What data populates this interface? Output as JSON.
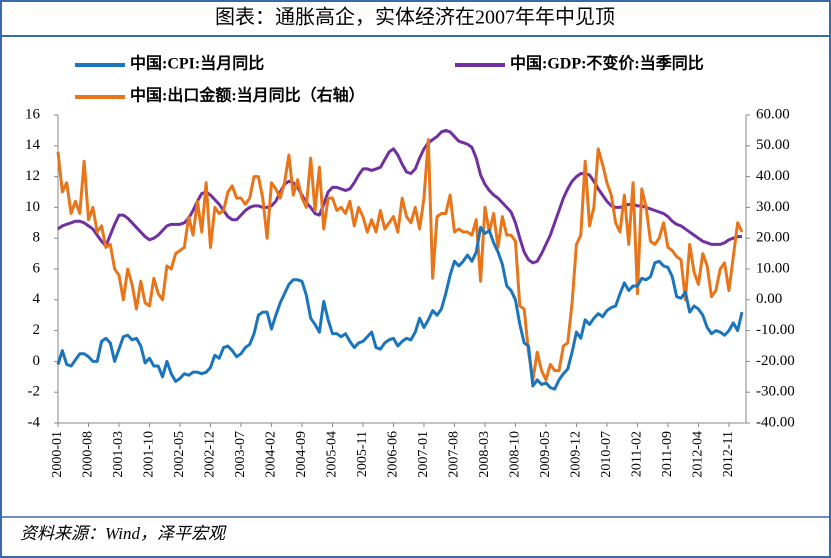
{
  "chart_data": {
    "type": "line",
    "title": "图表：通胀高企，实体经济在2007年年中见顶",
    "source": "资料来源：Wind，泽平宏观",
    "categories": [
      "2000-01",
      null,
      null,
      null,
      null,
      null,
      null,
      "2000-08",
      null,
      null,
      null,
      null,
      null,
      null,
      "2001-03",
      null,
      null,
      null,
      null,
      null,
      null,
      "2001-10",
      null,
      null,
      null,
      null,
      null,
      null,
      "2002-05",
      null,
      null,
      null,
      null,
      null,
      null,
      "2002-12",
      null,
      null,
      null,
      null,
      null,
      null,
      "2003-07",
      null,
      null,
      null,
      null,
      null,
      null,
      "2004-02",
      null,
      null,
      null,
      null,
      null,
      null,
      "2004-09",
      null,
      null,
      null,
      null,
      null,
      null,
      "2005-04",
      null,
      null,
      null,
      null,
      null,
      null,
      "2005-11",
      null,
      null,
      null,
      null,
      null,
      null,
      "2006-06",
      null,
      null,
      null,
      null,
      null,
      null,
      "2007-01",
      null,
      null,
      null,
      null,
      null,
      null,
      "2007-08",
      null,
      null,
      null,
      null,
      null,
      null,
      "2008-03",
      null,
      null,
      null,
      null,
      null,
      null,
      "2008-10",
      null,
      null,
      null,
      null,
      null,
      null,
      "2009-05",
      null,
      null,
      null,
      null,
      null,
      null,
      "2009-12",
      null,
      null,
      null,
      null,
      null,
      null,
      "2010-07",
      null,
      null,
      null,
      null,
      null,
      null,
      "2011-02",
      null,
      null,
      null,
      null,
      null,
      null,
      "2011-09",
      null,
      null,
      null,
      null,
      null,
      null,
      "2012-04",
      null,
      null,
      null,
      null,
      null,
      null,
      "2012-11",
      null,
      null,
      null
    ],
    "series": [
      {
        "name": "中国:CPI:当月同比",
        "color": "#1a75bc",
        "values": [
          -0.2,
          0.7,
          -0.2,
          -0.3,
          0.1,
          0.5,
          0.5,
          0.3,
          0.0,
          0.0,
          1.3,
          1.5,
          1.2,
          0.0,
          0.8,
          1.6,
          1.7,
          1.4,
          1.5,
          1.0,
          -0.1,
          0.2,
          -0.3,
          -0.3,
          -1.0,
          0.0,
          -0.8,
          -1.3,
          -1.1,
          -0.8,
          -0.9,
          -0.7,
          -0.7,
          -0.8,
          -0.7,
          -0.4,
          0.4,
          0.2,
          0.9,
          1.0,
          0.7,
          0.3,
          0.5,
          0.9,
          1.1,
          1.8,
          3.0,
          3.2,
          3.2,
          2.1,
          3.0,
          3.8,
          4.4,
          5.0,
          5.3,
          5.3,
          5.2,
          4.3,
          2.8,
          2.4,
          1.9,
          3.9,
          2.7,
          1.8,
          1.8,
          1.6,
          1.8,
          1.3,
          0.9,
          1.2,
          1.3,
          1.6,
          1.9,
          0.9,
          0.8,
          1.2,
          1.4,
          1.5,
          1.0,
          1.3,
          1.5,
          1.4,
          1.9,
          2.8,
          2.2,
          2.7,
          3.3,
          3.0,
          3.4,
          4.4,
          5.6,
          6.5,
          6.2,
          6.5,
          6.9,
          6.5,
          7.1,
          8.7,
          8.3,
          8.5,
          7.7,
          7.1,
          6.3,
          4.9,
          4.6,
          4.0,
          2.4,
          1.2,
          1.0,
          -1.6,
          -1.2,
          -1.5,
          -1.4,
          -1.7,
          -1.8,
          -1.2,
          -0.8,
          -0.5,
          0.6,
          1.9,
          1.5,
          2.7,
          2.4,
          2.8,
          3.1,
          2.9,
          3.3,
          3.5,
          3.6,
          4.4,
          5.1,
          4.6,
          4.9,
          4.9,
          5.4,
          5.3,
          5.5,
          6.4,
          6.5,
          6.2,
          6.1,
          5.5,
          4.2,
          4.1,
          4.5,
          3.2,
          3.6,
          3.4,
          3.0,
          2.2,
          1.8,
          2.0,
          1.9,
          1.7,
          2.0,
          2.5,
          2.0,
          3.2
        ]
      },
      {
        "name": "中国:GDP:不变价:当季同比",
        "color": "#7030a0",
        "values": [
          8.6,
          8.8,
          8.9,
          9.0,
          9.1,
          9.1,
          9.0,
          8.8,
          8.6,
          8.2,
          7.8,
          7.5,
          8.2,
          8.9,
          9.5,
          9.5,
          9.3,
          9.0,
          8.7,
          8.4,
          8.1,
          7.9,
          8.0,
          8.2,
          8.5,
          8.8,
          8.9,
          8.9,
          8.9,
          9.0,
          9.3,
          9.8,
          10.4,
          10.9,
          11.0,
          10.8,
          10.5,
          10.2,
          9.8,
          9.4,
          9.2,
          9.2,
          9.5,
          9.8,
          10.0,
          10.1,
          10.1,
          10.0,
          10.0,
          10.1,
          10.4,
          11.0,
          11.5,
          11.7,
          11.6,
          11.3,
          10.8,
          10.3,
          10.0,
          9.6,
          9.5,
          10.2,
          11.0,
          11.3,
          11.3,
          11.2,
          11.1,
          11.2,
          11.6,
          12.1,
          12.5,
          12.5,
          12.4,
          12.5,
          12.6,
          13.1,
          13.6,
          13.8,
          13.4,
          12.8,
          12.3,
          12.2,
          12.5,
          13.2,
          13.8,
          14.2,
          14.4,
          14.6,
          14.9,
          15.0,
          14.9,
          14.6,
          14.3,
          14.2,
          14.1,
          13.9,
          13.2,
          12.1,
          11.5,
          11.1,
          10.8,
          10.6,
          10.3,
          10.0,
          9.7,
          9.0,
          8.0,
          7.1,
          6.6,
          6.4,
          6.5,
          7.0,
          7.6,
          8.2,
          9.0,
          9.8,
          10.6,
          11.2,
          11.7,
          12.0,
          12.2,
          12.2,
          12.1,
          11.7,
          11.2,
          10.8,
          10.4,
          10.1,
          10.0,
          10.0,
          10.1,
          10.2,
          10.2,
          10.1,
          10.1,
          10.0,
          9.9,
          9.8,
          9.7,
          9.6,
          9.4,
          9.1,
          8.9,
          8.8,
          8.6,
          8.4,
          8.2,
          8.0,
          7.8,
          7.7,
          7.6,
          7.6,
          7.6,
          7.7,
          7.9,
          8.0,
          8.1,
          8.1
        ]
      },
      {
        "name": "中国:出口金额:当月同比（右轴）",
        "color": "#e8751a",
        "axis": "y2",
        "values": [
          48,
          35,
          38,
          28,
          32,
          28,
          45,
          26,
          30,
          22,
          24,
          17,
          18,
          10,
          8,
          0,
          10,
          5,
          -3,
          6,
          -1,
          -2,
          7,
          2,
          0,
          11,
          10,
          15,
          16,
          17,
          27,
          21,
          32,
          22,
          38,
          17,
          30,
          28,
          29,
          35,
          37,
          33,
          33,
          31,
          33,
          40,
          40,
          33,
          20,
          38,
          36,
          33,
          38,
          47,
          34,
          39,
          33,
          30,
          46,
          29,
          43,
          23,
          33,
          33,
          29,
          30,
          28,
          32,
          24,
          30,
          27,
          22,
          26,
          22,
          29,
          23,
          25,
          27,
          22,
          33,
          27,
          25,
          30,
          23,
          33,
          52,
          7,
          27,
          28,
          28,
          34,
          22,
          23,
          22,
          22,
          21,
          26,
          6,
          30,
          22,
          28,
          17,
          27,
          21,
          21,
          19,
          -2,
          -3,
          -17,
          -26,
          -17,
          -23,
          -26,
          -21,
          -23,
          -23,
          -15,
          -14,
          -1,
          18,
          21,
          45,
          24,
          30,
          49,
          44,
          38,
          34,
          25,
          22,
          34,
          18,
          38,
          2,
          36,
          30,
          19,
          18,
          20,
          25,
          17,
          16,
          14,
          13,
          0,
          18,
          9,
          5,
          15,
          11,
          1,
          3,
          10,
          12,
          3,
          14,
          25,
          22
        ]
      }
    ],
    "ylim": [
      -4,
      16
    ],
    "yticks": [
      -4,
      -2,
      0,
      2,
      4,
      6,
      8,
      10,
      12,
      14,
      16
    ],
    "y2lim": [
      -40,
      60
    ],
    "y2ticks": [
      {
        "value": -40,
        "label": "-40.00"
      },
      {
        "value": -30,
        "label": "-30.00"
      },
      {
        "value": -20,
        "label": "-20.00"
      },
      {
        "value": -10,
        "label": "-10.00"
      },
      {
        "value": 0,
        "label": "0.00"
      },
      {
        "value": 10,
        "label": "10.00"
      },
      {
        "value": 20,
        "label": "20.00"
      },
      {
        "value": 30,
        "label": "30.00"
      },
      {
        "value": 40,
        "label": "40.00"
      },
      {
        "value": 50,
        "label": "50.00"
      },
      {
        "value": 60,
        "label": "60.00"
      }
    ],
    "grid": false,
    "legend": "top"
  }
}
